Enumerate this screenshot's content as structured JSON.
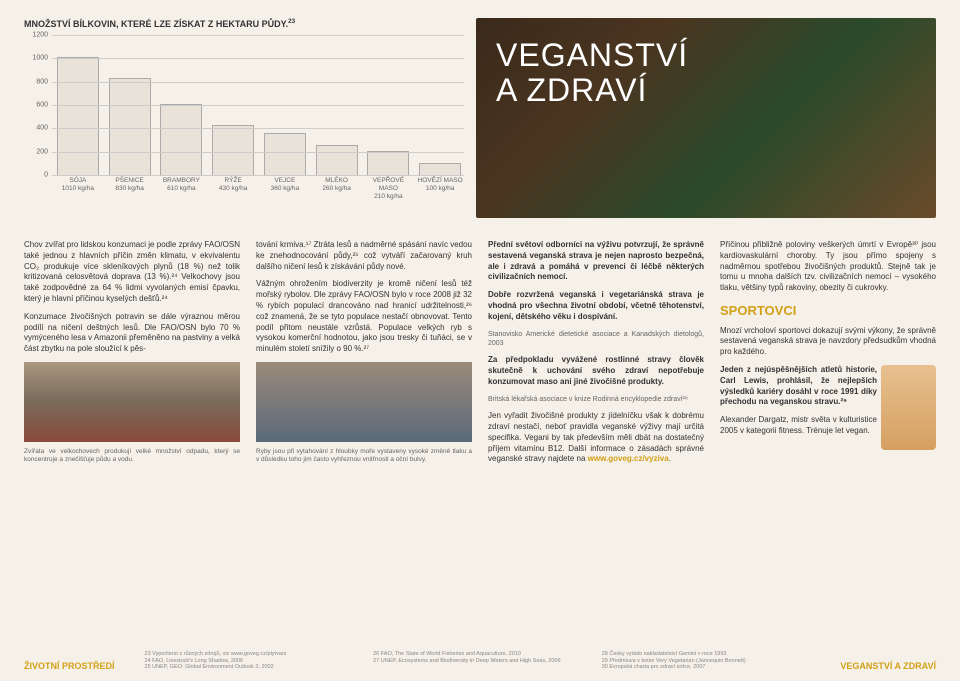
{
  "chart": {
    "title": "MNOŽSTVÍ BÍLKOVIN, KTERÉ LZE ZÍSKAT Z HEKTARU PŮDY.",
    "sup": "23",
    "ymax": 1200,
    "ytick_step": 200,
    "bar_color": "#e8e2d8",
    "items": [
      {
        "label": "SÓJA",
        "sub": "1010 kg/ha",
        "value": 1010
      },
      {
        "label": "PŠENICE",
        "sub": "830 kg/ha",
        "value": 830
      },
      {
        "label": "BRAMBORY",
        "sub": "610 kg/ha",
        "value": 610
      },
      {
        "label": "RÝŽE",
        "sub": "430 kg/ha",
        "value": 430
      },
      {
        "label": "VEJCE",
        "sub": "360 kg/ha",
        "value": 360
      },
      {
        "label": "MLÉKO",
        "sub": "260 kg/ha",
        "value": 260
      },
      {
        "label": "VEPŘOVÉ MASO",
        "sub": "210 kg/ha",
        "value": 210
      },
      {
        "label": "HOVĚZÍ MASO",
        "sub": "100 kg/ha",
        "value": 100
      }
    ]
  },
  "hero": {
    "line1": "VEGANSTVÍ",
    "line2": "A ZDRAVÍ"
  },
  "col1": {
    "p1": "Chov zvířat pro lidskou konzumaci je podle zprávy FAO/OSN také jednou z hlavních příčin změn klimatu, v ekvivalentu CO₂ produkuje více skleníkových plynů (18 %) než tolik kritizovaná celosvětová doprava (13 %).²⁴ Velkochovy jsou také zodpovědné za 64 % lidmi vyvolaných emisí čpavku, který je hlavní příčinou kyselých dešťů.²⁴",
    "p2": "Konzumace živočišných potravin se dále výraznou měrou podílí na ničení deštných lesů. Dle FAO/OSN bylo 70 % vymýceného lesa v Amazonii přeměněno na pastviny a velká část zbytku na pole sloužící k pěs-",
    "caption": "Zvířata ve velkochovech produkují velké množství odpadu, který se koncentruje a znečišťuje půdu a vodu."
  },
  "col2": {
    "p1": "tování krmiva.¹⁷ Ztráta lesů a nadměrné spásání navíc vedou ke znehodnocování půdy,²⁵ což vytváří začarovaný kruh dalšího ničení lesů k získávání půdy nové.",
    "p2": "Vážným ohrožením biodiverzity je kromě ničení lesů též mořský rybolov. Dle zprávy FAO/OSN bylo v roce 2008 již 32 % rybích populací drancováno nad hranicí udržitelnosti,²⁶ což znamená, že se tyto populace nestačí obnovovat. Tento podíl přitom neustále vzrůstá. Populace velkých ryb s vysokou komerční hodnotou, jako jsou tresky či tuňáci, se v minulém století snížily o 90 %.²⁷",
    "caption": "Ryby jsou při vytahování z hloubky moře vystaveny vysoké změně tlaku a v důsledku toho jim často vyhřeznou vnitřnosti a oční bulvy."
  },
  "col3": {
    "q1": "Přední světoví odborníci na výživu potvrzují, že správně sestavená veganská strava je nejen naprosto bezpečná, ale i zdravá a pomáhá v prevenci či léčbě některých civilizačních nemocí.",
    "q2": "Dobře rozvržená veganská i vegetariánská strava je vhodná pro všechna životní období, včetně těhotenství, kojení, dětského věku i dospívání.",
    "q2attr": "Stanovisko Americké dietetické asociace a Kanadských dietologů, 2003",
    "q3": "Za předpokladu vyvážené rostlinné stravy člověk skutečně k uchování svého zdraví nepotřebuje konzumovat maso ani jiné živočišné produkty.",
    "q3attr": "Britská lékařská asociace v knize Rodinná encyklopedie zdraví²⁸",
    "p4": "Jen vyřadit živočišné produkty z jídelníčku však k dobrému zdraví nestačí, neboť pravidla veganské výživy mají určitá specifika. Vegani by tak především měli dbát na dostatečný příjem vitamínu B12. Další informace o zásadách správné veganské stravy najdete na ",
    "link": "www.goveg.cz/vyziva",
    "p4end": "."
  },
  "col4": {
    "p1": "Příčinou přibližně poloviny veškerých úmrtí v Evropě³⁰ jsou kardiovaskulární choroby. Ty jsou přímo spojeny s nadměrnou spotřebou živočišných produktů. Stejně tak je tomu u mnoha dalších tzv. civilizačních nemocí – vysokého tlaku, většiny typů rakoviny, obezity či cukrovky.",
    "head": "SPORTOVCI",
    "p2": "Mnozí vrcholoví sportovci dokazují svými výkony, že správně sestavená veganská strava je navzdory předsudkům vhodná pro každého.",
    "p3": "Jeden z nejúspěšnějších atletů historie, Carl Lewis, prohlásil, že nejlepších výsledků kariéry dosáhl v roce 1991 díky přechodu na veganskou stravu.²⁹",
    "p4": "Alexander Dargatz, mistr světa v kulturistice 2005 v kategorii fitness. Trénuje let vegan."
  },
  "footer": {
    "left": "ŽIVOTNÍ PROSTŘEDÍ",
    "right": "VEGANSTVÍ A ZDRAVÍ",
    "fn1": "23  Vypočteno z různých zdrojů, viz www.goveg.cz/plytvani\n24  FAO, Livestock's Long Shadow, 2006\n25  UNEP, GEO: Global Environment Outlook 3, 2002",
    "fn2": "26  FAO, The State of World Fisheries and Aquaculture, 2010\n27  UNEP, Ecosystems and Biodiversity in Deep Waters and High Seas, 2006",
    "fn3": "28  Česky vydalo nakladatelství Gemini v roce 1993\n29  Předmluva v knize Very Vegetarian (Jannequin Bennett)\n30  Evropská charta pro zdraví srdce, 2007"
  }
}
